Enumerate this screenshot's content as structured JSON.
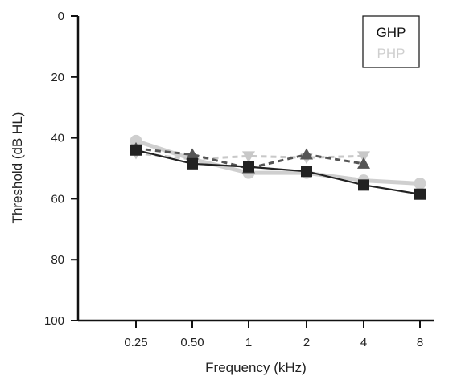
{
  "chart_data": {
    "type": "line",
    "title": "",
    "xlabel": "Frequency (kHz)",
    "ylabel": "Threshold (dB HL)",
    "categories": [
      "0.25",
      "0.50",
      "1",
      "2",
      "4",
      "8"
    ],
    "y_axis": {
      "ticks": [
        "0",
        "20",
        "40",
        "60",
        "80",
        "100"
      ],
      "range": [
        0,
        100
      ],
      "inverted": true
    },
    "grid": false,
    "legend": {
      "position": "top-right",
      "entries": [
        "GHP",
        "PHP"
      ]
    },
    "colors": {
      "ghp": "#222222",
      "php": "#cfcfcf",
      "dark_dashed": "#555555",
      "light_dashed": "#c8c8c8"
    },
    "series": [
      {
        "name": "GHP",
        "marker": "square",
        "line": "solid",
        "color": "#222222",
        "values": [
          44,
          48.5,
          49.5,
          51,
          55.5,
          58.5
        ]
      },
      {
        "name": "PHP",
        "marker": "circle",
        "line": "solid",
        "color": "#cfcfcf",
        "values": [
          41,
          47,
          51.5,
          51.5,
          54,
          55
        ]
      },
      {
        "marker": "triangle-up",
        "line": "dashed",
        "color": "#555555",
        "values": [
          43.5,
          45.5,
          50,
          45.5,
          48.5,
          null
        ]
      },
      {
        "marker": "triangle-down",
        "line": "dashed",
        "color": "#c8c8c8",
        "values": [
          45,
          47,
          46,
          46.5,
          46,
          null
        ]
      }
    ]
  }
}
